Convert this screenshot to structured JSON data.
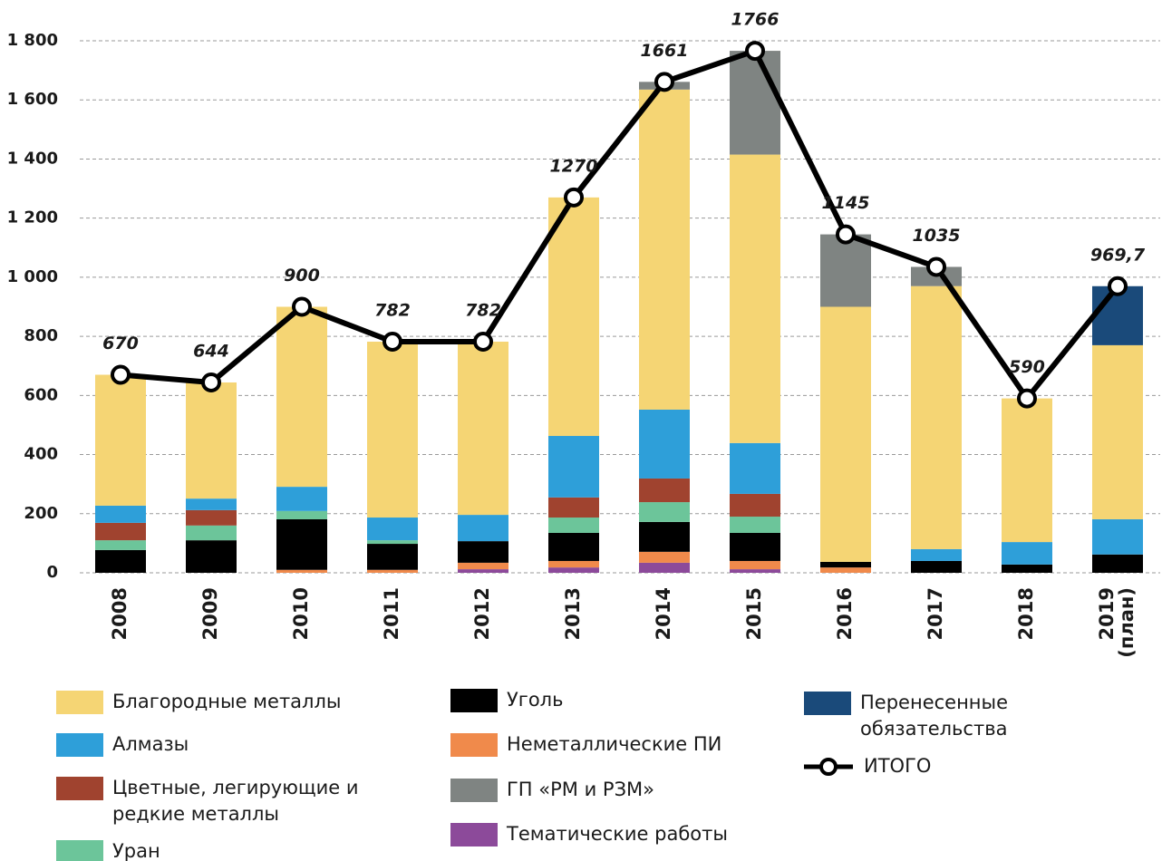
{
  "chart_data": {
    "type": "stacked-bar-line",
    "categories": [
      "2008",
      "2009",
      "2010",
      "2011",
      "2012",
      "2013",
      "2014",
      "2015",
      "2016",
      "2017",
      "2018",
      "2019 (план)"
    ],
    "series": [
      {
        "name": "Тематические работы",
        "color": "#8c4a9a",
        "values": [
          0,
          0,
          0,
          0,
          12,
          18,
          34,
          12,
          0,
          0,
          0,
          0
        ]
      },
      {
        "name": "Неметаллические ПИ",
        "color": "#f08a4b",
        "values": [
          0,
          0,
          10,
          10,
          22,
          22,
          37,
          28,
          18,
          0,
          0,
          0
        ]
      },
      {
        "name": "Уголь",
        "color": "#000000",
        "values": [
          77,
          110,
          171,
          88,
          73,
          95,
          101,
          95,
          19,
          40,
          28,
          62
        ]
      },
      {
        "name": "Уран",
        "color": "#6cc59a",
        "values": [
          33,
          50,
          28,
          12,
          0,
          52,
          67,
          55,
          0,
          0,
          0,
          0
        ]
      },
      {
        "name": "Цветные, легирующие и редкие металлы",
        "color": "#a0432f",
        "values": [
          59,
          52,
          0,
          0,
          0,
          68,
          80,
          77,
          0,
          0,
          0,
          0
        ]
      },
      {
        "name": "Алмазы",
        "color": "#2e9fd9",
        "values": [
          58,
          39,
          82,
          77,
          89,
          208,
          233,
          172,
          0,
          40,
          76,
          119
        ]
      },
      {
        "name": "Благородные металлы",
        "color": "#f5d574",
        "values": [
          443,
          393,
          609,
          595,
          586,
          807,
          1083,
          976,
          863,
          890,
          486,
          589
        ]
      },
      {
        "name": "ГП «РМ и РЗМ»",
        "color": "#7f8482",
        "values": [
          0,
          0,
          0,
          0,
          0,
          0,
          26,
          351,
          245,
          65,
          0,
          0
        ]
      },
      {
        "name": "Перенесенные обязательства",
        "color": "#1a4a7a",
        "values": [
          0,
          0,
          0,
          0,
          0,
          0,
          0,
          0,
          0,
          0,
          0,
          199.7
        ]
      }
    ],
    "total": {
      "name": "ИТОГО",
      "color": "#000000",
      "values": [
        670,
        644,
        900,
        782,
        782,
        1270,
        1661,
        1766,
        1145,
        1035,
        590,
        969.7
      ],
      "value_labels": [
        "670",
        "644",
        "900",
        "782",
        "782",
        "1270",
        "1661",
        "1766",
        "1145",
        "1035",
        "590",
        "969,7"
      ]
    },
    "ylim": [
      0,
      1800
    ],
    "yticks": [
      0,
      {
        "value": 200,
        "label": "200"
      },
      {
        "value": 400,
        "label": "400"
      },
      {
        "value": 600,
        "label": "600"
      },
      {
        "value": 800,
        "label": "800"
      },
      {
        "value": 1000,
        "label": "1 000"
      },
      {
        "value": 1200,
        "label": "1 200"
      },
      {
        "value": 1400,
        "label": "1 400"
      },
      {
        "value": 1600,
        "label": "1 600"
      },
      {
        "value": 1800,
        "label": "1 800"
      }
    ],
    "grid": true
  }
}
